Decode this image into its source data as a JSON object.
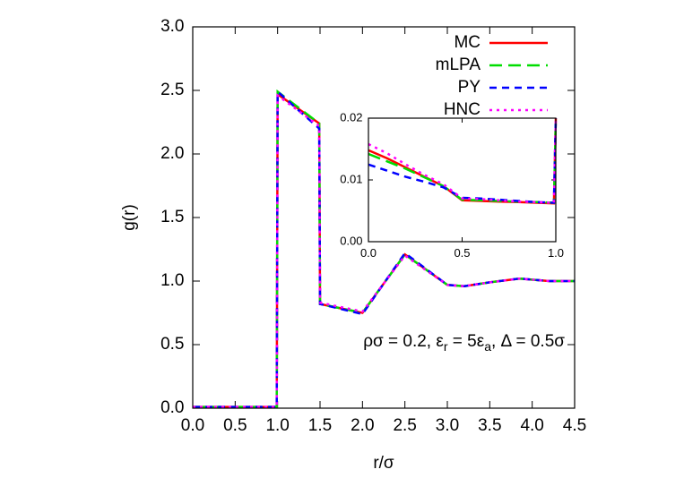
{
  "chart_data": [
    {
      "type": "line",
      "xlabel": "r/σ",
      "ylabel": "g(r)",
      "annotation": [
        "ρσ = 0.2, ε",
        "r",
        " = 5ε",
        "a",
        ", Δ = 0.5σ"
      ],
      "x": [
        0,
        0.99,
        1.0,
        1.49,
        1.5,
        2.0,
        2.5,
        3.0,
        3.2,
        3.5,
        3.85,
        4.2,
        4.5
      ],
      "series": [
        {
          "name": "MC",
          "color": "#ff0000",
          "style": "solid",
          "values": [
            0.01,
            0.01,
            2.47,
            2.24,
            0.82,
            0.75,
            1.21,
            0.97,
            0.96,
            0.99,
            1.02,
            1.0,
            1.0
          ]
        },
        {
          "name": "mLPA",
          "color": "#00dd00",
          "style": "long-dash",
          "values": [
            0.01,
            0.01,
            2.49,
            2.24,
            0.82,
            0.75,
            1.21,
            0.97,
            0.96,
            0.99,
            1.02,
            1.0,
            1.0
          ]
        },
        {
          "name": "PY",
          "color": "#0000ff",
          "style": "dash",
          "values": [
            0.01,
            0.01,
            2.49,
            2.2,
            0.82,
            0.74,
            1.22,
            0.97,
            0.96,
            0.99,
            1.02,
            1.0,
            1.0
          ]
        },
        {
          "name": "HNC",
          "color": "#ff00ff",
          "style": "dot",
          "values": [
            0.01,
            0.01,
            2.46,
            2.22,
            0.83,
            0.76,
            1.2,
            0.97,
            0.96,
            0.99,
            1.02,
            1.0,
            1.0
          ]
        }
      ],
      "xlim": [
        0,
        4.5
      ],
      "xticks": [
        {
          "value": 0,
          "label": "0.0"
        },
        {
          "value": 0.5,
          "label": "0.5"
        },
        {
          "value": 1,
          "label": "1.0"
        },
        {
          "value": 1.5,
          "label": "1.5"
        },
        {
          "value": 2,
          "label": "2.0"
        },
        {
          "value": 2.5,
          "label": "2.5"
        },
        {
          "value": 3,
          "label": "3.0"
        },
        {
          "value": 3.5,
          "label": "3.5"
        },
        {
          "value": 4,
          "label": "4.0"
        },
        {
          "value": 4.5,
          "label": "4.5"
        }
      ],
      "ylim": [
        0,
        3
      ],
      "yticks": [
        {
          "value": 0,
          "label": "0.0"
        },
        {
          "value": 0.5,
          "label": "0.5"
        },
        {
          "value": 1,
          "label": "1.0"
        },
        {
          "value": 1.5,
          "label": "1.5"
        },
        {
          "value": 2,
          "label": "2.0"
        },
        {
          "value": 2.5,
          "label": "2.5"
        },
        {
          "value": 3,
          "label": "3.0"
        }
      ],
      "legend": "top-right"
    },
    {
      "type": "line",
      "x": [
        0,
        0.1,
        0.2,
        0.3,
        0.4,
        0.5,
        0.6,
        0.7,
        0.8,
        0.9,
        0.99,
        1.0
      ],
      "series": [
        {
          "color": "#ff0000",
          "style": "solid",
          "values": [
            0.0148,
            0.0135,
            0.012,
            0.0105,
            0.009,
            0.0067,
            0.0066,
            0.0065,
            0.0064,
            0.0063,
            0.0062,
            0.02
          ]
        },
        {
          "color": "#00dd00",
          "style": "long-dash",
          "values": [
            0.0142,
            0.013,
            0.0118,
            0.0104,
            0.009,
            0.0068,
            0.0067,
            0.0066,
            0.0065,
            0.0064,
            0.0063,
            0.02
          ]
        },
        {
          "color": "#0000ff",
          "style": "dash",
          "values": [
            0.0125,
            0.0115,
            0.0105,
            0.0097,
            0.0088,
            0.0071,
            0.007,
            0.0068,
            0.0066,
            0.0064,
            0.0063,
            0.02
          ]
        },
        {
          "color": "#ff00ff",
          "style": "dot",
          "values": [
            0.0158,
            0.0143,
            0.0125,
            0.0108,
            0.0093,
            0.007,
            0.0069,
            0.0067,
            0.0065,
            0.0064,
            0.0063,
            0.02
          ]
        }
      ],
      "xlim": [
        0,
        1
      ],
      "xticks": [
        {
          "value": 0,
          "label": "0.0"
        },
        {
          "value": 0.5,
          "label": "0.5"
        },
        {
          "value": 1,
          "label": "1.0"
        }
      ],
      "ylim": [
        0,
        0.02
      ],
      "yticks": [
        {
          "value": 0,
          "label": "0.00"
        },
        {
          "value": 0.01,
          "label": "0.01"
        },
        {
          "value": 0.02,
          "label": "0.02"
        }
      ]
    }
  ]
}
